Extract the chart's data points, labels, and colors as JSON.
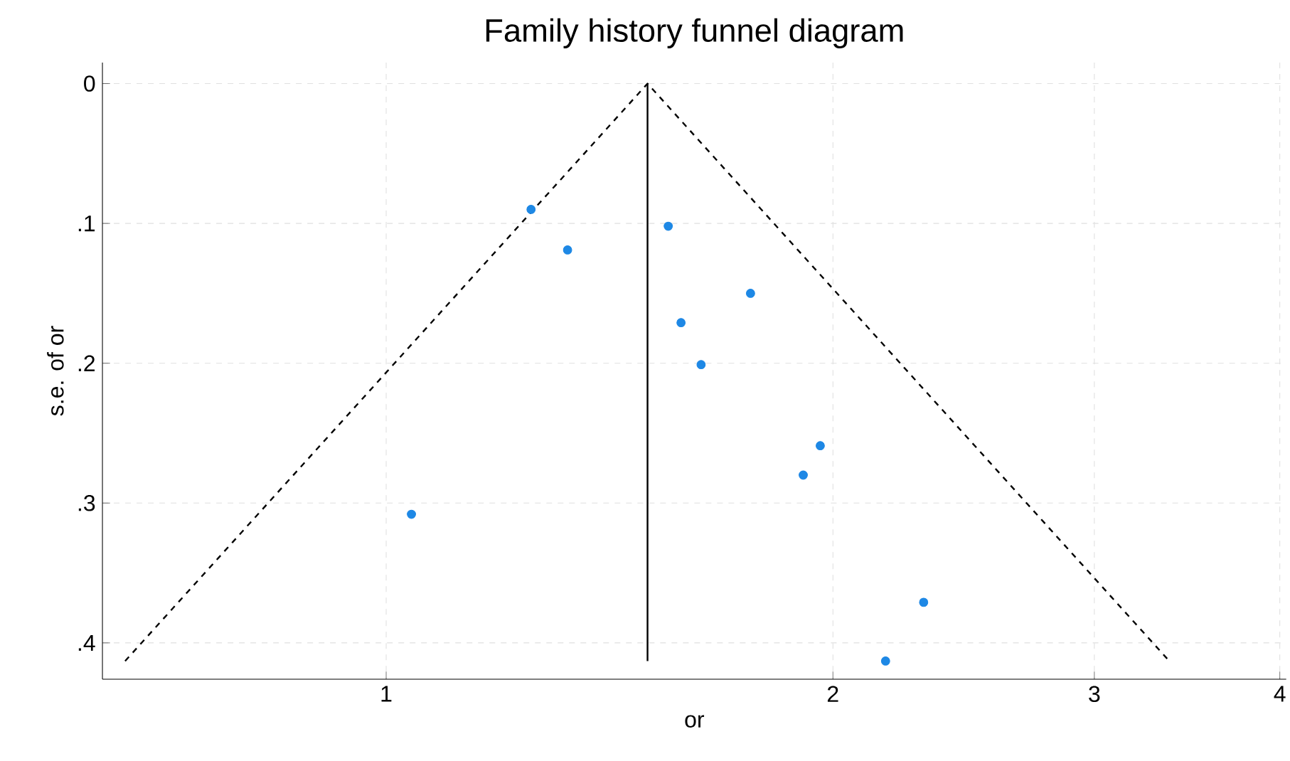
{
  "chart_data": {
    "type": "scatter",
    "title": "Family history funnel diagram",
    "xlabel": "or",
    "ylabel": "s.e. of or",
    "log": "x",
    "grid": true,
    "xlim": [
      0.644,
      4.04
    ],
    "ylim": [
      0.426,
      -0.015
    ],
    "xticks": [
      1,
      2,
      3,
      4
    ],
    "yticks": [
      0,
      {
        "value": 0.1,
        "label": ".1"
      },
      {
        "value": 0.2,
        "label": ".2"
      },
      {
        "value": 0.3,
        "label": ".3"
      },
      {
        "value": 0.4,
        "label": ".4"
      }
    ],
    "series": [
      {
        "color": "#1e88e5",
        "marker": "circle",
        "x": [
          1.252,
          1.325,
          1.549,
          1.76,
          1.58,
          1.63,
          1.961,
          1.91,
          1.04,
          2.302,
          2.17
        ],
        "values": [
          0.09,
          0.119,
          0.102,
          0.15,
          0.171,
          0.201,
          0.259,
          0.28,
          0.308,
          0.371,
          0.413
        ]
      },
      {
        "type": "line",
        "color": "#000000",
        "marker": "none",
        "line_style": "dashed",
        "x": [
          0.667,
          1.5,
          3.37
        ],
        "values": [
          0.413,
          0,
          0.413
        ]
      },
      {
        "type": "line",
        "color": "#000000",
        "marker": "none",
        "line_style": "solid",
        "x": [
          1.5,
          1.5
        ],
        "values": [
          0,
          0.413
        ]
      }
    ]
  }
}
